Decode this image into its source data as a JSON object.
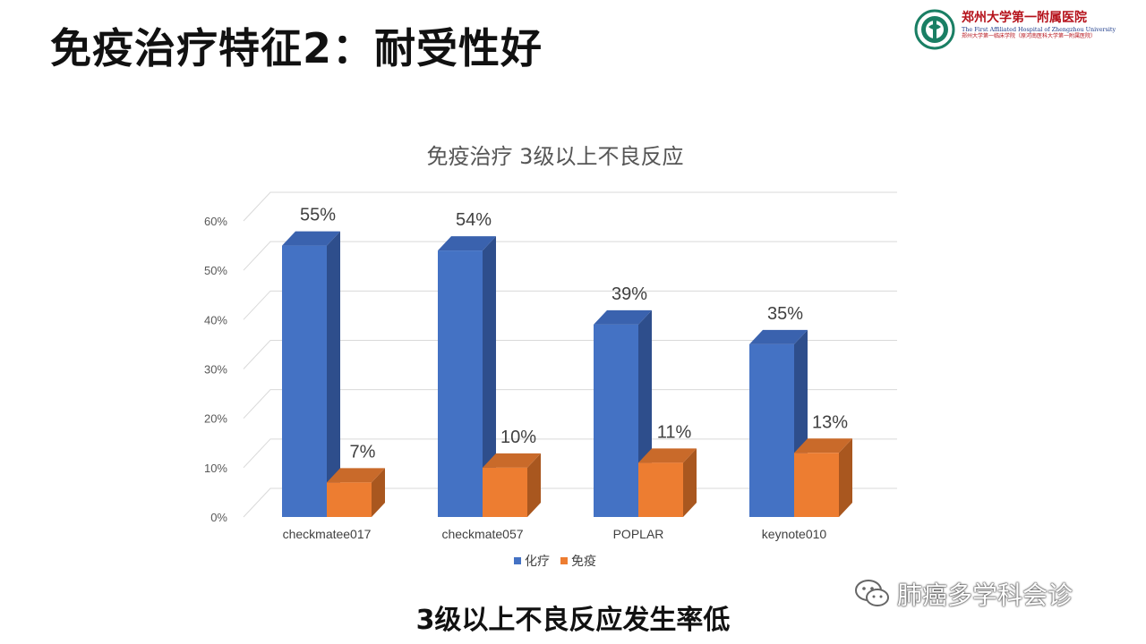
{
  "slide": {
    "title": "免疫治疗特征2：耐受性好",
    "caption": "3级以上不良反应发生率低"
  },
  "logo": {
    "name": "郑州大学第一附属医院",
    "english": "The First Affiliated Hospital of Zhengzhou University",
    "subtitle": "郑州大学第一临床学院（原河南医科大学第一附属医院）"
  },
  "watermark": {
    "text": "肺癌多学科会诊",
    "icon": "wechat-icon"
  },
  "colors": {
    "chemo": "#4472C4",
    "immuno": "#ED7D31",
    "grid": "#D9D9D9"
  },
  "chart_data": {
    "type": "bar",
    "title": "免疫治疗  3级以上不良反应",
    "categories": [
      "checkmatee017",
      "checkmate057",
      "POPLAR",
      "keynote010"
    ],
    "series": [
      {
        "name": "化疗",
        "values": [
          55,
          54,
          39,
          35
        ],
        "labels": [
          "55%",
          "54%",
          "39%",
          "35%"
        ]
      },
      {
        "name": "免疫",
        "values": [
          7,
          10,
          11,
          13
        ],
        "labels": [
          "7%",
          "10%",
          "11%",
          "13%"
        ]
      }
    ],
    "yticks": [
      "0%",
      "10%",
      "20%",
      "30%",
      "40%",
      "50%",
      "60%"
    ],
    "ylim": [
      0,
      60
    ],
    "grid": true,
    "legend": "bottom",
    "style": "3d-clustered-column"
  }
}
